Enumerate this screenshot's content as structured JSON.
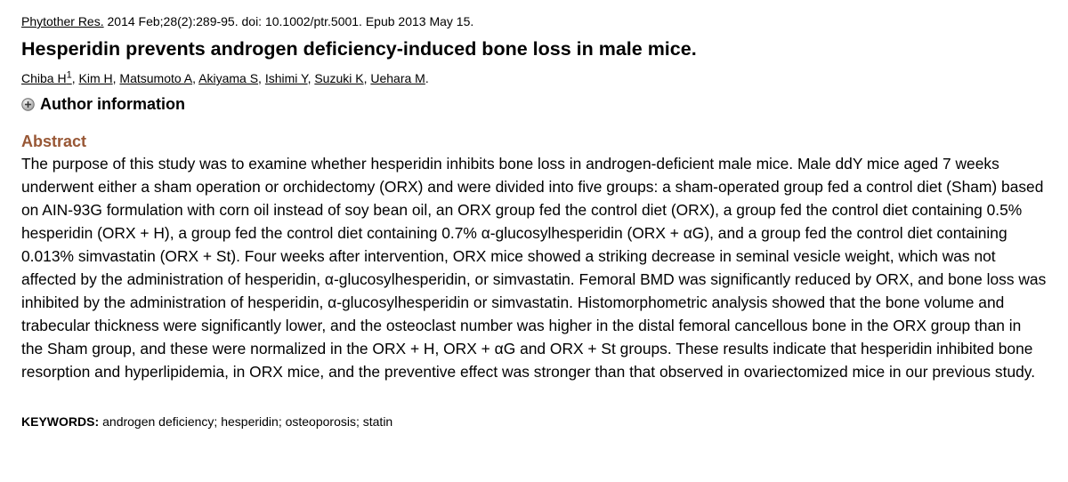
{
  "citation": {
    "journal": "Phytother Res.",
    "details": " 2014 Feb;28(2):289-95. doi: 10.1002/ptr.5001. Epub 2013 May 15."
  },
  "title": "Hesperidin prevents androgen deficiency-induced bone loss in male mice.",
  "authors": [
    {
      "name": "Chiba H",
      "sup": "1"
    },
    {
      "name": "Kim H"
    },
    {
      "name": "Matsumoto A"
    },
    {
      "name": "Akiyama S"
    },
    {
      "name": "Ishimi Y"
    },
    {
      "name": "Suzuki K"
    },
    {
      "name": "Uehara M"
    }
  ],
  "author_info": {
    "label": "Author information",
    "icon": "plus-circle-icon"
  },
  "abstract": {
    "heading": "Abstract",
    "text": "The purpose of this study was to examine whether hesperidin inhibits bone loss in androgen-deficient male mice. Male ddY mice aged 7 weeks underwent either a sham operation or orchidectomy (ORX) and were divided into five groups: a sham-operated group fed a control diet (Sham) based on AIN-93G formulation with corn oil instead of soy bean oil, an ORX group fed the control diet (ORX), a group fed the control diet containing 0.5% hesperidin (ORX + H), a group fed the control diet containing 0.7% α-glucosylhesperidin (ORX + αG), and a group fed the control diet containing 0.013% simvastatin (ORX + St). Four weeks after intervention, ORX mice showed a striking decrease in seminal vesicle weight, which was not affected by the administration of hesperidin, α-glucosylhesperidin, or simvastatin. Femoral BMD was significantly reduced by ORX, and bone loss was inhibited by the administration of hesperidin, α-glucosylhesperidin or simvastatin. Histomorphometric analysis showed that the bone volume and trabecular thickness were significantly lower, and the osteoclast number was higher in the distal femoral cancellous bone in the ORX group than in the Sham group, and these were normalized in the ORX + H, ORX + αG and ORX + St groups. These results indicate that hesperidin inhibited bone resorption and hyperlipidemia, in ORX mice, and the preventive effect was stronger than that observed in ovariectomized mice in our previous study."
  },
  "keywords": {
    "label": "KEYWORDS:",
    "items": "androgen deficiency; hesperidin; osteoporosis; statin"
  },
  "colors": {
    "abstract_heading": "#985735",
    "text": "#000000",
    "background": "#ffffff"
  }
}
